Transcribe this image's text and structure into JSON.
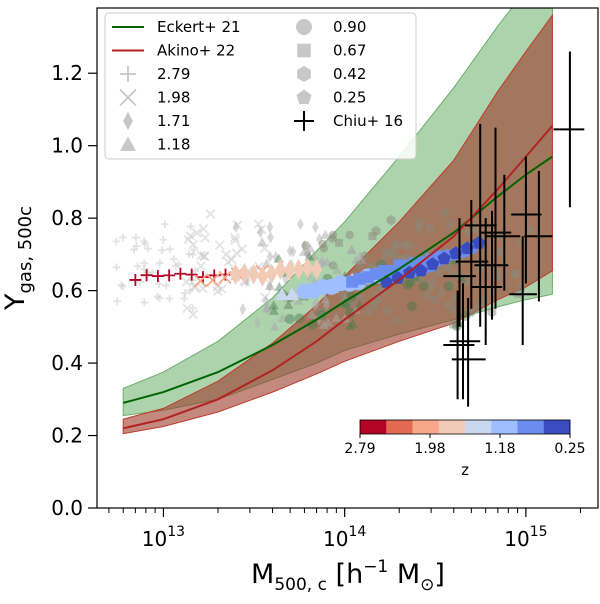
{
  "chart_data": {
    "type": "scatter",
    "title": "",
    "xlabel": "M",
    "xlabel_sub": "500, c",
    "xlabel_unit_open": " [h",
    "xlabel_unit_exp": "−1",
    "xlabel_unit_close": " M",
    "xlabel_unit_sun": "⊙",
    "xlabel_unit_end": "]",
    "ylabel": "Y",
    "ylabel_sub": "gas, 500c",
    "xscale": "log",
    "xlim": [
      4300000000000.0,
      2500000000000000.0
    ],
    "ylim": [
      0.0,
      1.38
    ],
    "x_ticks": [
      {
        "value": 10000000000000.0,
        "base": "10",
        "exp": "13"
      },
      {
        "value": 100000000000000.0,
        "base": "10",
        "exp": "14"
      },
      {
        "value": 1000000000000000.0,
        "base": "10",
        "exp": "15"
      }
    ],
    "y_ticks": [
      {
        "value": 0.0,
        "label": "0.0"
      },
      {
        "value": 0.2,
        "label": "0.2"
      },
      {
        "value": 0.4,
        "label": "0.4"
      },
      {
        "value": 0.6,
        "label": "0.6"
      },
      {
        "value": 0.8,
        "label": "0.8"
      },
      {
        "value": 1.0,
        "label": "1.0"
      },
      {
        "value": 1.2,
        "label": "1.2"
      }
    ],
    "colors": {
      "eckert_line": "#006400",
      "eckert_band": "#6aae6a",
      "akino_line": "#b22222",
      "akino_band": "#9b3a2a",
      "chiu": "#000000",
      "grey_marker": "#c8c8c8",
      "dark_marker": "#8a8a7a"
    },
    "models": {
      "eckert": {
        "label": "Eckert+ 21",
        "x": [
          6000000000000.0,
          10000000000000.0,
          20000000000000.0,
          40000000000000.0,
          70000000000000.0,
          100000000000000.0,
          200000000000000.0,
          400000000000000.0,
          700000000000000.0,
          1000000000000000.0,
          1400000000000000.0
        ],
        "y": [
          0.29,
          0.32,
          0.375,
          0.45,
          0.52,
          0.57,
          0.66,
          0.76,
          0.86,
          0.92,
          0.97
        ],
        "lo": [
          0.255,
          0.27,
          0.3,
          0.355,
          0.4,
          0.435,
          0.48,
          0.52,
          0.555,
          0.575,
          0.59
        ],
        "hi": [
          0.33,
          0.375,
          0.46,
          0.58,
          0.71,
          0.79,
          0.97,
          1.16,
          1.33,
          1.43,
          1.48
        ]
      },
      "akino": {
        "label": "Akino+ 22",
        "x": [
          6000000000000.0,
          10000000000000.0,
          20000000000000.0,
          40000000000000.0,
          70000000000000.0,
          100000000000000.0,
          200000000000000.0,
          400000000000000.0,
          700000000000000.0,
          1000000000000000.0,
          1400000000000000.0
        ],
        "y": [
          0.22,
          0.245,
          0.3,
          0.38,
          0.46,
          0.52,
          0.63,
          0.75,
          0.88,
          0.97,
          1.055
        ],
        "lo": [
          0.205,
          0.225,
          0.265,
          0.32,
          0.37,
          0.405,
          0.46,
          0.51,
          0.575,
          0.61,
          0.655
        ],
        "hi": [
          0.245,
          0.275,
          0.35,
          0.455,
          0.56,
          0.64,
          0.79,
          0.96,
          1.15,
          1.26,
          1.36
        ]
      }
    },
    "colorbar": {
      "label": "z",
      "tick_labels": [
        "2.79",
        "1.98",
        "1.18",
        "0.25"
      ],
      "colors": [
        "#b40426",
        "#e26952",
        "#f7a889",
        "#f2cbb7",
        "#c9d7f0",
        "#9ebeff",
        "#6b8df0",
        "#3b4cc0"
      ]
    },
    "legend": {
      "models": [
        "Eckert+ 21",
        "Akino+ 22"
      ],
      "redshift_markers": [
        {
          "label": "2.79",
          "marker": "plus"
        },
        {
          "label": "1.98",
          "marker": "x"
        },
        {
          "label": "1.71",
          "marker": "diamond"
        },
        {
          "label": "1.18",
          "marker": "triangle"
        },
        {
          "label": "0.90",
          "marker": "circle"
        },
        {
          "label": "0.67",
          "marker": "square"
        },
        {
          "label": "0.42",
          "marker": "hexagon"
        },
        {
          "label": "0.25",
          "marker": "pentagon"
        }
      ],
      "chiu_label": "Chiu+ 16"
    },
    "chiu16": [
      {
        "x": 420000000000000.0,
        "y": 0.45,
        "xlo": 350000000000000.0,
        "xhi": 520000000000000.0,
        "ylo": 0.3,
        "yhi": 0.6
      },
      {
        "x": 450000000000000.0,
        "y": 0.46,
        "xlo": 380000000000000.0,
        "xhi": 560000000000000.0,
        "ylo": 0.3,
        "yhi": 0.62
      },
      {
        "x": 480000000000000.0,
        "y": 0.41,
        "xlo": 390000000000000.0,
        "xhi": 600000000000000.0,
        "ylo": 0.28,
        "yhi": 0.58
      },
      {
        "x": 430000000000000.0,
        "y": 0.64,
        "xlo": 350000000000000.0,
        "xhi": 530000000000000.0,
        "ylo": 0.5,
        "yhi": 0.8
      },
      {
        "x": 500000000000000.0,
        "y": 0.68,
        "xlo": 410000000000000.0,
        "xhi": 620000000000000.0,
        "ylo": 0.55,
        "yhi": 0.85
      },
      {
        "x": 560000000000000.0,
        "y": 0.78,
        "xlo": 460000000000000.0,
        "xhi": 690000000000000.0,
        "ylo": 0.5,
        "yhi": 1.06
      },
      {
        "x": 600000000000000.0,
        "y": 0.61,
        "xlo": 500000000000000.0,
        "xhi": 740000000000000.0,
        "ylo": 0.45,
        "yhi": 0.8
      },
      {
        "x": 650000000000000.0,
        "y": 0.67,
        "xlo": 520000000000000.0,
        "xhi": 800000000000000.0,
        "ylo": 0.52,
        "yhi": 0.82
      },
      {
        "x": 680000000000000.0,
        "y": 0.76,
        "xlo": 560000000000000.0,
        "xhi": 830000000000000.0,
        "ylo": 0.55,
        "yhi": 1.05
      },
      {
        "x": 760000000000000.0,
        "y": 0.75,
        "xlo": 600000000000000.0,
        "xhi": 930000000000000.0,
        "ylo": 0.6,
        "yhi": 0.92
      },
      {
        "x": 960000000000000.0,
        "y": 0.59,
        "xlo": 810000000000000.0,
        "xhi": 1150000000000000.0,
        "ylo": 0.45,
        "yhi": 0.75
      },
      {
        "x": 1000000000000000.0,
        "y": 0.81,
        "xlo": 830000000000000.0,
        "xhi": 1220000000000000.0,
        "ylo": 0.62,
        "yhi": 0.97
      },
      {
        "x": 1180000000000000.0,
        "y": 0.75,
        "xlo": 980000000000000.0,
        "xhi": 1400000000000000.0,
        "ylo": 0.57,
        "yhi": 0.93
      },
      {
        "x": 1750000000000000.0,
        "y": 1.045,
        "xlo": 1420000000000000.0,
        "xhi": 2100000000000000.0,
        "ylo": 0.83,
        "yhi": 1.26
      }
    ]
  }
}
